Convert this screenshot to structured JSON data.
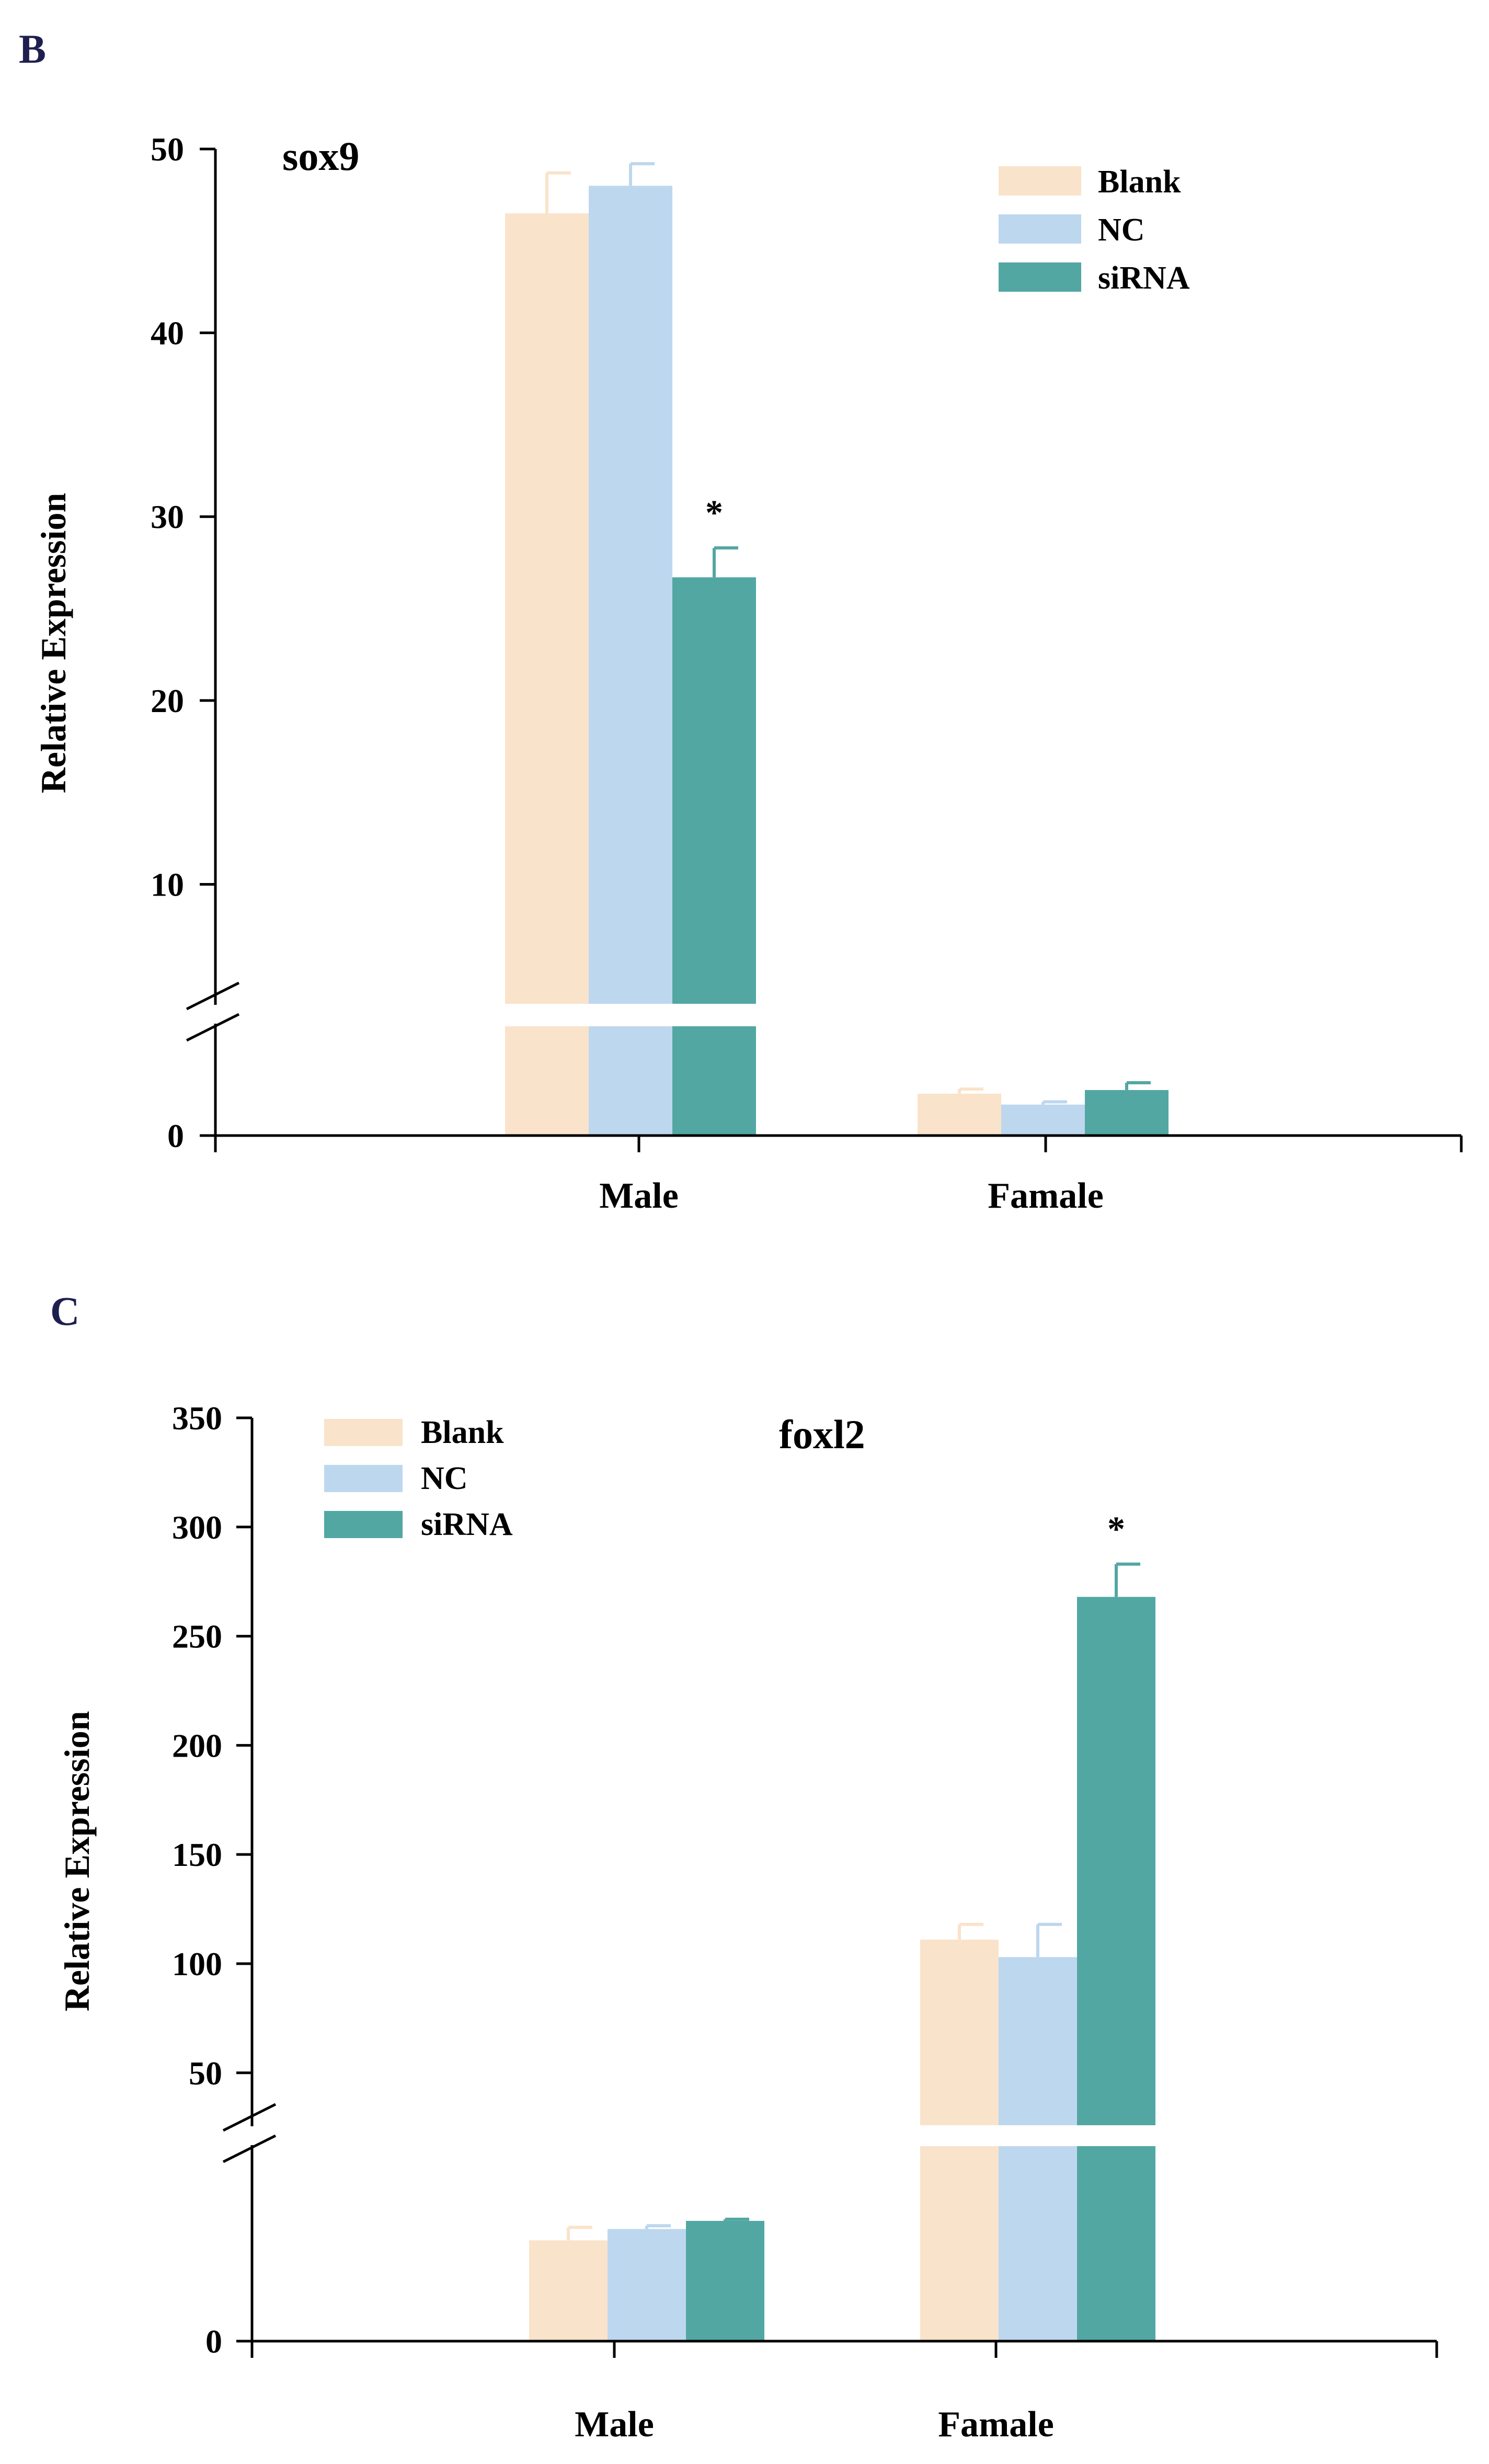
{
  "colors": {
    "blank": "#FAE3CB",
    "nc": "#BDD7EE",
    "sirna": "#52A7A3",
    "panel_letter": "#1F1F4F",
    "axis": "#000000"
  },
  "chart_data": [
    {
      "panel": "B",
      "type": "bar",
      "title": "sox9",
      "ylabel": "Relative Expression",
      "xlabel": "",
      "categories": [
        "Male",
        "Famale"
      ],
      "series": [
        {
          "name": "Blank",
          "color_key": "blank",
          "values": [
            46.5,
            0.46
          ],
          "errors": [
            2.2,
            0.05
          ]
        },
        {
          "name": "NC",
          "color_key": "nc",
          "values": [
            48.0,
            0.34
          ],
          "errors": [
            1.2,
            0.03
          ]
        },
        {
          "name": "siRNA",
          "color_key": "sirna",
          "values": [
            26.7,
            0.5
          ],
          "errors": [
            1.6,
            0.08
          ]
        }
      ],
      "axis_break": {
        "lower": [
          0,
          1.2
        ],
        "upper": [
          3.5,
          50
        ]
      },
      "yticks_upper": [
        10,
        20,
        30,
        40,
        50
      ],
      "yticks_lower": [
        0
      ],
      "ytick_labels": {
        "0": "0",
        "10": "10",
        "20": "20",
        "30": "30",
        "40": "40",
        "50": "50"
      },
      "significance": [
        {
          "category": "Male",
          "series": "siRNA",
          "label": "*"
        }
      ],
      "legend": [
        "Blank",
        "NC",
        "siRNA"
      ],
      "legend_position": "top-right",
      "grid": false
    },
    {
      "panel": "C",
      "type": "bar",
      "title": "foxl2",
      "ylabel": "Relative Expression",
      "xlabel": "",
      "categories": [
        "Male",
        "Famale"
      ],
      "series": [
        {
          "name": "Blank",
          "color_key": "blank",
          "values": [
            0.62,
            111
          ],
          "errors": [
            0.08,
            7
          ]
        },
        {
          "name": "NC",
          "color_key": "nc",
          "values": [
            0.69,
            103
          ],
          "errors": [
            0.02,
            15
          ]
        },
        {
          "name": "siRNA",
          "color_key": "sirna",
          "values": [
            0.74,
            268
          ],
          "errors": [
            0.01,
            15
          ]
        }
      ],
      "axis_break": {
        "lower": [
          0,
          1.2
        ],
        "upper": [
          26,
          350
        ]
      },
      "yticks_upper": [
        50,
        100,
        150,
        200,
        250,
        300,
        350
      ],
      "yticks_lower": [
        0
      ],
      "ytick_labels": {
        "0": "0",
        "50": "50",
        "100": "100",
        "150": "150",
        "200": "200",
        "250": "250",
        "300": "300",
        "350": "350"
      },
      "significance": [
        {
          "category": "Famale",
          "series": "siRNA",
          "label": "*"
        }
      ],
      "legend": [
        "Blank",
        "NC",
        "siRNA"
      ],
      "legend_position": "top-left",
      "grid": false
    }
  ]
}
